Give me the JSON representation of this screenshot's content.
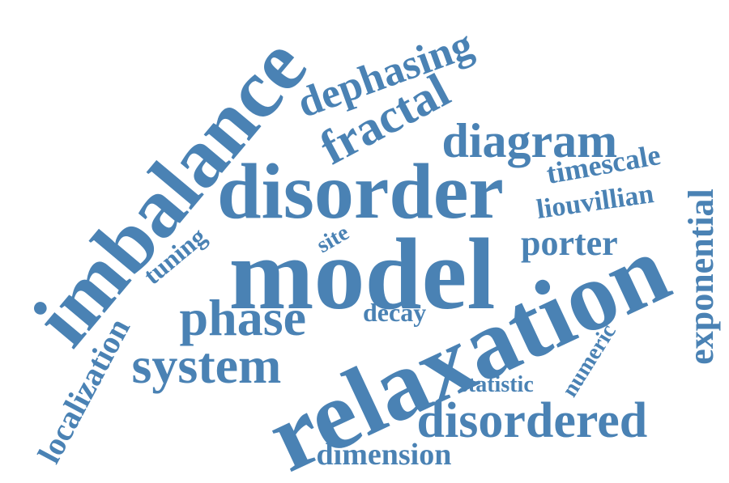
{
  "word_cloud": {
    "color": "#4a82b4",
    "background": "#ffffff",
    "words": [
      "model",
      "relaxation",
      "disorder",
      "imbalance",
      "system",
      "phase",
      "disordered",
      "diagram",
      "fractal",
      "dephasing",
      "exponential",
      "localization",
      "porter",
      "dimension",
      "timescale",
      "liouvillian",
      "decay",
      "tuning",
      "site",
      "statistic",
      "numeric"
    ]
  }
}
